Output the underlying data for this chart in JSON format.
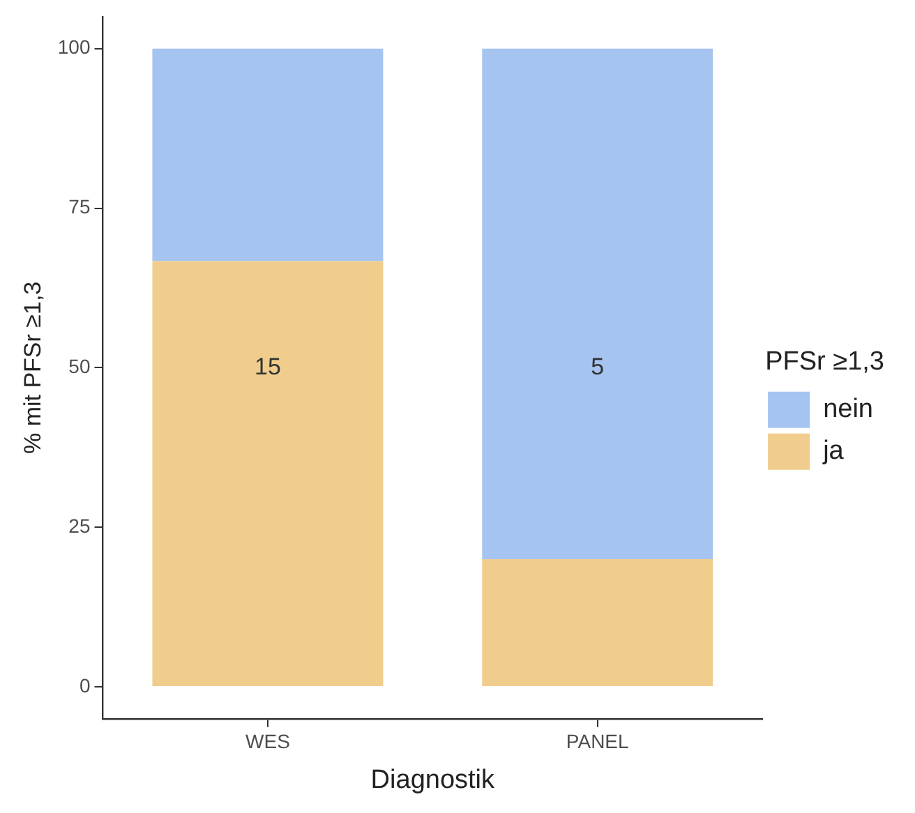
{
  "chart_data": {
    "type": "bar",
    "stacked": true,
    "xlabel": "Diagnostik",
    "ylabel": "% mit PFSr ≥1,3",
    "legend_title": "PFSr ≥1,3",
    "legend": "right",
    "grid": false,
    "categories": [
      "WES",
      "PANEL"
    ],
    "series": [
      {
        "name": "ja",
        "color": "#f0cd8c",
        "values": [
          66.7,
          20
        ]
      },
      {
        "name": "nein",
        "color": "#a6c4f0",
        "values": [
          33.3,
          80
        ]
      }
    ],
    "ylim": [
      -5,
      105
    ],
    "yticks": [
      0,
      25,
      50,
      75,
      100
    ],
    "annotations": [
      "15",
      "5"
    ]
  }
}
